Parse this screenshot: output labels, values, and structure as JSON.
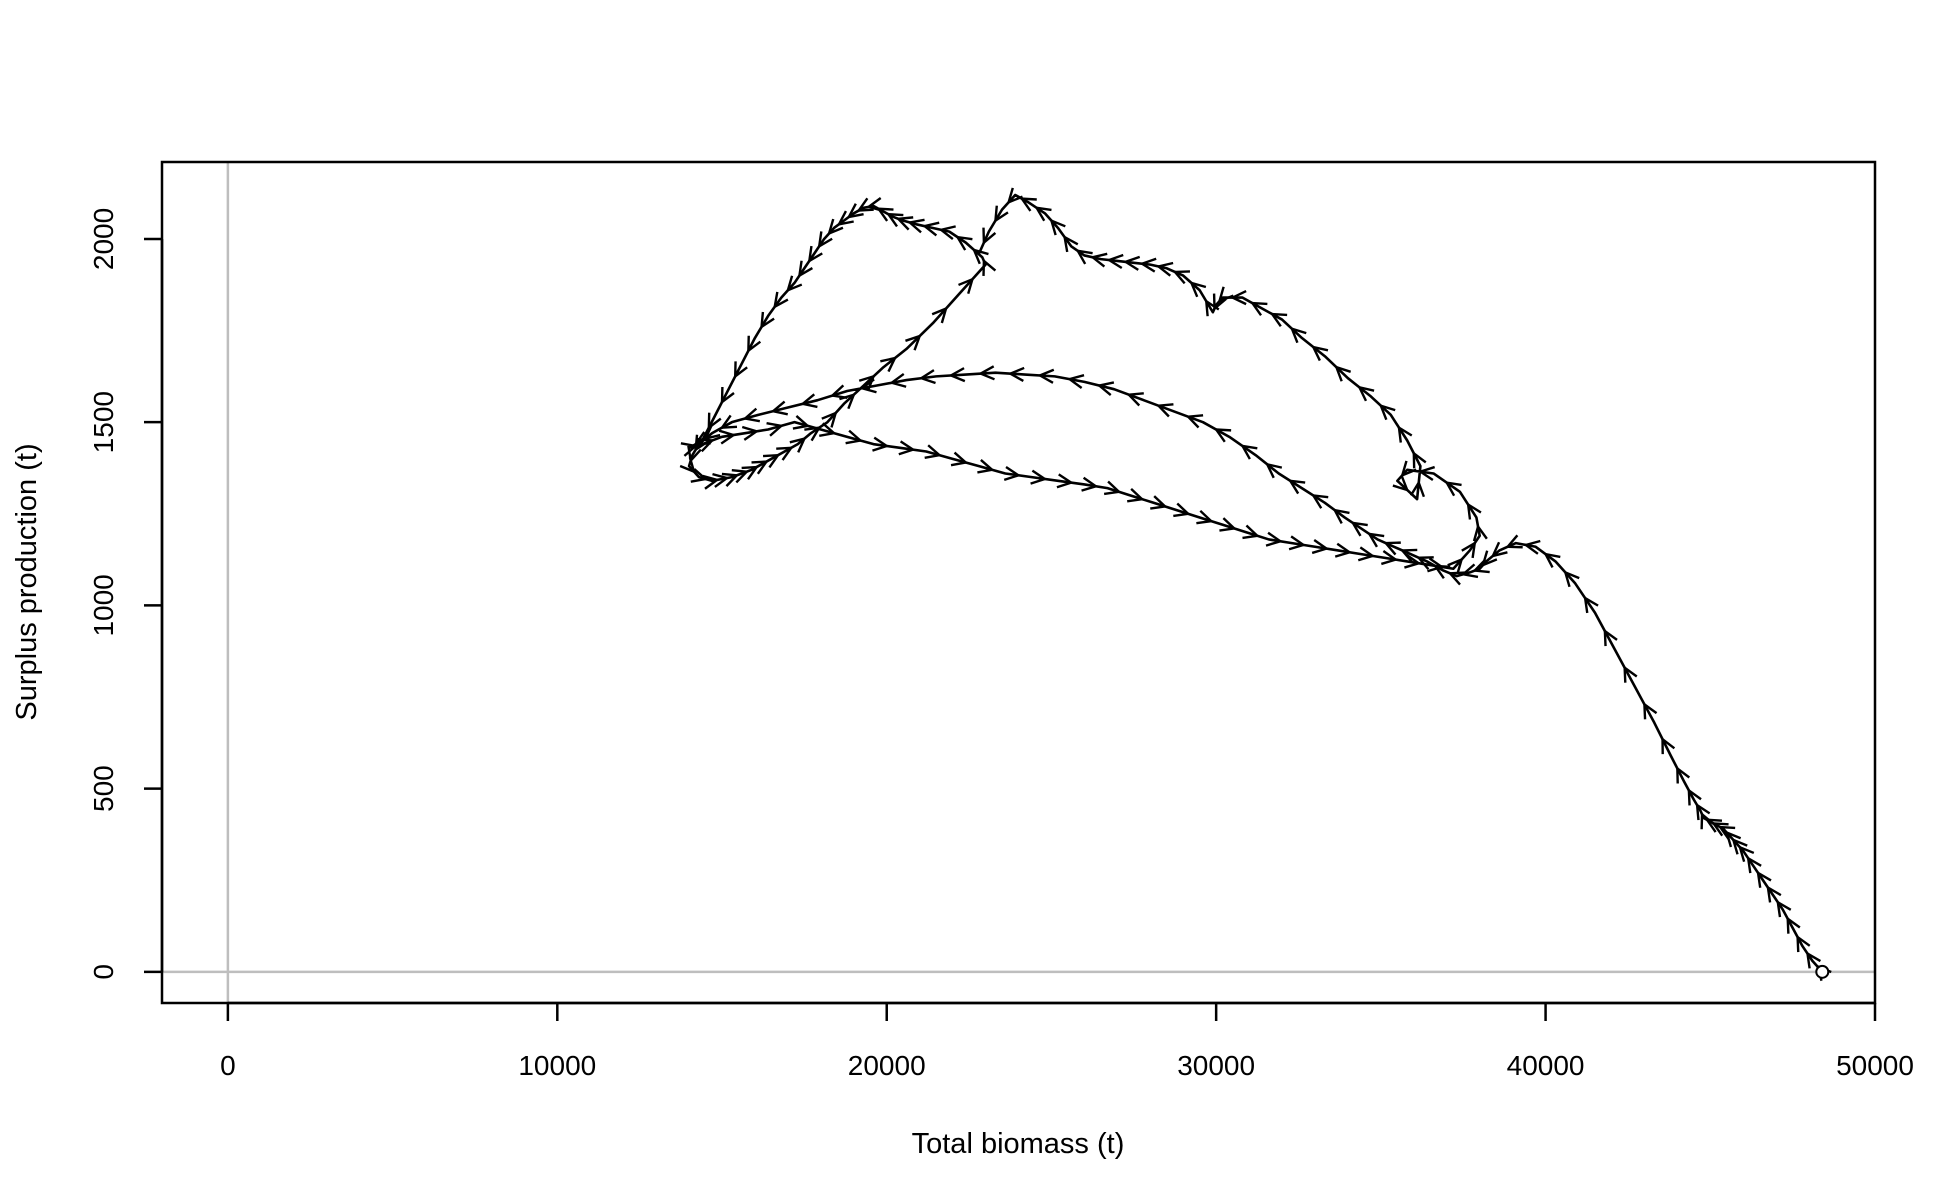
{
  "chart_data": {
    "type": "line",
    "xlabel": "Total biomass (t)",
    "ylabel": "Surplus production (t)",
    "xlim": [
      -2000,
      50000
    ],
    "ylim": [
      -85,
      2210
    ],
    "xticks": [
      "0",
      "10000",
      "20000",
      "30000",
      "40000",
      "50000"
    ],
    "xtick_values": [
      0,
      10000,
      20000,
      30000,
      40000,
      50000
    ],
    "yticks": [
      "0",
      "500",
      "1000",
      "1500",
      "2000"
    ],
    "ytick_values": [
      0,
      500,
      1000,
      1500,
      2000
    ],
    "reference_lines": {
      "x": 0,
      "y": 0,
      "color": "#bebebe"
    },
    "line_color": "#000000",
    "arrows": true,
    "end_marker": {
      "x": 48400,
      "y": 0,
      "shape": "open-circle"
    },
    "series": [
      {
        "x": [
          48400,
          48100,
          47800,
          47500,
          47200,
          46900,
          46600,
          46300,
          46000,
          45800,
          45600,
          45400,
          45200,
          45000,
          44800,
          44700,
          44500,
          44200,
          43800,
          43300,
          42700,
          42100,
          41500,
          40900,
          40300,
          39700,
          39100,
          38600,
          38200,
          38000,
          37700,
          37300,
          36900,
          36400,
          35900,
          35400,
          34900,
          34400,
          33900,
          33300,
          32600,
          31900,
          31200,
          30400,
          29600,
          28700,
          27800,
          26900,
          26000,
          25100,
          24200,
          23300,
          22400,
          21500,
          20600,
          19700,
          18800,
          17900,
          17000,
          16100,
          15300,
          14700,
          14300,
          14100,
          14000,
          14300,
          14700,
          15000,
          15300,
          15600,
          15900,
          16200,
          16500,
          16900,
          17300,
          17700,
          18200,
          18700,
          19300,
          19900,
          20600,
          21400,
          22200,
          23000,
          22900,
          22400,
          21900,
          21400,
          20900,
          20500,
          20200,
          19900,
          19600,
          19300,
          19000,
          18700,
          18400,
          18100,
          17800,
          17500,
          17200,
          16800,
          16400,
          16000,
          15600,
          15200,
          14800,
          14400,
          14000,
          14400,
          15000,
          15700,
          16400,
          17200,
          18000,
          18800,
          19600,
          20400,
          21200,
          22000,
          22800,
          23600,
          24400,
          25200,
          26000,
          26700,
          27400,
          28100,
          28800,
          29500,
          30200,
          30900,
          31600,
          32300,
          33000,
          33700,
          34400,
          35100,
          35800,
          36500,
          37200,
          37700,
          38000,
          37900,
          37400,
          36600,
          35800,
          35500,
          36100,
          36200,
          35800,
          35300,
          34700,
          34000,
          33300,
          32600,
          32000,
          31400,
          30800,
          30200,
          30000,
          29900,
          29500,
          29000,
          28500,
          28000,
          27500,
          27000,
          26500,
          26000,
          25600,
          25200,
          24800,
          24300,
          23900,
          23500,
          23100,
          22800
        ],
        "y": [
          0,
          30,
          70,
          120,
          170,
          210,
          250,
          290,
          330,
          350,
          370,
          390,
          400,
          410,
          420,
          440,
          470,
          520,
          590,
          680,
          780,
          880,
          980,
          1060,
          1120,
          1160,
          1170,
          1150,
          1120,
          1100,
          1090,
          1080,
          1095,
          1120,
          1140,
          1160,
          1180,
          1210,
          1240,
          1280,
          1320,
          1360,
          1410,
          1460,
          1500,
          1530,
          1560,
          1590,
          1610,
          1625,
          1630,
          1635,
          1630,
          1625,
          1615,
          1600,
          1585,
          1560,
          1540,
          1520,
          1500,
          1470,
          1440,
          1410,
          1380,
          1350,
          1340,
          1345,
          1350,
          1360,
          1370,
          1385,
          1400,
          1420,
          1440,
          1470,
          1500,
          1550,
          1600,
          1650,
          1700,
          1770,
          1850,
          1930,
          1950,
          1990,
          2020,
          2030,
          2040,
          2050,
          2060,
          2075,
          2090,
          2085,
          2070,
          2050,
          2030,
          2000,
          1960,
          1920,
          1880,
          1840,
          1790,
          1730,
          1660,
          1590,
          1520,
          1450,
          1430,
          1440,
          1460,
          1470,
          1480,
          1500,
          1480,
          1460,
          1440,
          1430,
          1420,
          1400,
          1380,
          1360,
          1350,
          1340,
          1330,
          1320,
          1300,
          1280,
          1260,
          1240,
          1220,
          1200,
          1180,
          1170,
          1160,
          1150,
          1140,
          1130,
          1120,
          1110,
          1100,
          1150,
          1190,
          1240,
          1310,
          1360,
          1370,
          1340,
          1290,
          1380,
          1450,
          1520,
          1570,
          1620,
          1680,
          1730,
          1780,
          1810,
          1840,
          1840,
          1820,
          1800,
          1860,
          1900,
          1920,
          1930,
          1935,
          1940,
          1945,
          1955,
          1980,
          2030,
          2070,
          2100,
          2120,
          2080,
          2020,
          1960
        ]
      }
    ]
  }
}
